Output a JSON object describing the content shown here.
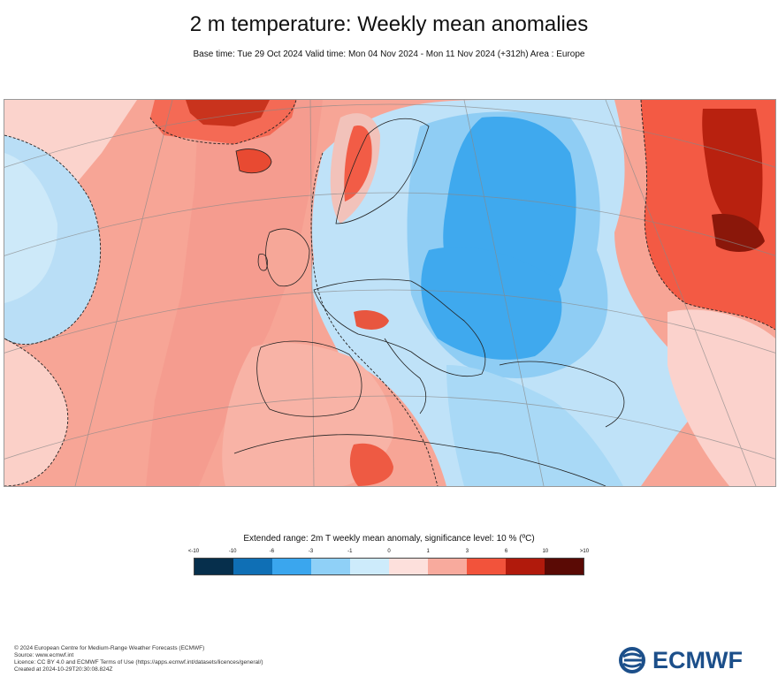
{
  "header": {
    "title": "2 m temperature: Weekly mean anomalies",
    "subtitle": "Base time: Tue 29 Oct 2024 Valid time: Mon 04 Nov 2024 - Mon 11 Nov 2024 (+312h) Area : Europe"
  },
  "map": {
    "area": "Europe",
    "colors": {
      "very_cold": "#08324f",
      "cold_strong": "#1a7bc0",
      "cold": "#3fa4e6",
      "cool": "#8fcaf2",
      "slightly_cool": "#c9e6f8",
      "slightly_warm": "#fbd2cc",
      "warm": "#f5a093",
      "warm_strong": "#f35a44",
      "hot": "#b8210f",
      "very_hot": "#5c0a05"
    }
  },
  "legend": {
    "title": "Extended range: 2m T weekly mean anomaly, significance level: 10 % (ºC)",
    "ticks": [
      "<-10",
      "-10",
      "-6",
      "-3",
      "-1",
      "0",
      "1",
      "3",
      "6",
      "10",
      ">10"
    ],
    "colors": [
      "#062f4c",
      "#0f6fb5",
      "#3aa6ee",
      "#8fd0f7",
      "#cdebfb",
      "#fde0dc",
      "#f8aa9d",
      "#f2533b",
      "#b11a0c",
      "#5a0a05"
    ]
  },
  "footer": {
    "lines": [
      "© 2024 European Centre for Medium-Range Weather Forecasts (ECMWF)",
      "Source: www.ecmwf.int",
      "Licence: CC BY 4.0 and ECMWF Terms of Use (https://apps.ecmwf.int/datasets/licences/general/)",
      "Created at 2024-10-29T20:30:08.824Z"
    ]
  },
  "logo": {
    "text": "ECMWF",
    "color": "#1c4f8a"
  }
}
